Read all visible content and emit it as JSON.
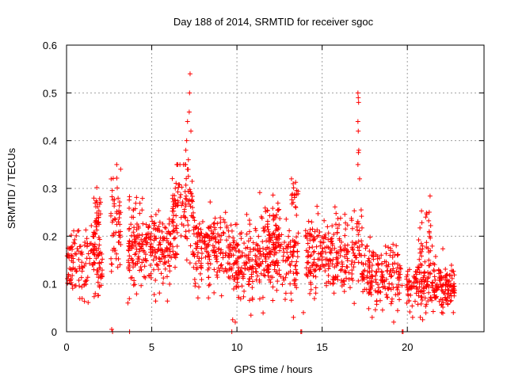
{
  "chart_data": {
    "type": "scatter",
    "title": "Day 188 of 2014, SRMTID for receiver sgoc",
    "xlabel": "GPS time / hours",
    "ylabel": "SRMTID / TECUs",
    "xlim": [
      0,
      24.5
    ],
    "ylim": [
      0,
      0.6
    ],
    "x_ticks": [
      0,
      5,
      10,
      15,
      20
    ],
    "x_tick_labels": [
      "0",
      "5",
      "10",
      "15",
      "20"
    ],
    "y_ticks": [
      0,
      0.1,
      0.2,
      0.3,
      0.4,
      0.5,
      0.6
    ],
    "y_tick_labels": [
      "0",
      "0.1",
      "0.2",
      "0.3",
      "0.4",
      "0.5",
      "0.6"
    ],
    "grid": true,
    "marker": "+",
    "series": [
      {
        "name": "SRMTID",
        "color": "#ff0000",
        "clusters": [
          {
            "x": [
              0.0,
              2.0
            ],
            "center": 0.15,
            "spread": 0.035,
            "n": 140
          },
          {
            "x": [
              1.6,
              2.0
            ],
            "center": 0.24,
            "spread": 0.03,
            "n": 35
          },
          {
            "x": [
              1.9,
              2.1
            ],
            "center": 0.12,
            "spread": 0.02,
            "n": 12
          },
          {
            "x": [
              2.6,
              3.2
            ],
            "center": 0.23,
            "spread": 0.06,
            "n": 55
          },
          {
            "x": [
              3.6,
              6.5
            ],
            "center": 0.18,
            "spread": 0.04,
            "n": 260
          },
          {
            "x": [
              6.2,
              7.4
            ],
            "center": 0.26,
            "spread": 0.06,
            "n": 90
          },
          {
            "x": [
              7.4,
              9.8
            ],
            "center": 0.17,
            "spread": 0.04,
            "n": 200
          },
          {
            "x": [
              9.8,
              12.4
            ],
            "center": 0.15,
            "spread": 0.04,
            "n": 220
          },
          {
            "x": [
              11.6,
              12.5
            ],
            "center": 0.21,
            "spread": 0.04,
            "n": 50
          },
          {
            "x": [
              12.4,
              13.6
            ],
            "center": 0.16,
            "spread": 0.04,
            "n": 90
          },
          {
            "x": [
              13.2,
              13.6
            ],
            "center": 0.29,
            "spread": 0.015,
            "n": 14
          },
          {
            "x": [
              14.0,
              17.0
            ],
            "center": 0.16,
            "spread": 0.04,
            "n": 240
          },
          {
            "x": [
              17.0,
              17.4
            ],
            "center": 0.18,
            "spread": 0.04,
            "n": 25
          },
          {
            "x": [
              17.3,
              19.7
            ],
            "center": 0.12,
            "spread": 0.035,
            "n": 180
          },
          {
            "x": [
              19.9,
              21.6
            ],
            "center": 0.1,
            "spread": 0.03,
            "n": 130
          },
          {
            "x": [
              20.6,
              21.4
            ],
            "center": 0.19,
            "spread": 0.04,
            "n": 30
          },
          {
            "x": [
              21.6,
              22.8
            ],
            "center": 0.09,
            "spread": 0.025,
            "n": 110
          }
        ],
        "points": [
          {
            "x": 7.0,
            "y": 0.38
          },
          {
            "x": 7.05,
            "y": 0.4
          },
          {
            "x": 7.1,
            "y": 0.34
          },
          {
            "x": 7.2,
            "y": 0.46
          },
          {
            "x": 7.22,
            "y": 0.5
          },
          {
            "x": 7.25,
            "y": 0.54
          },
          {
            "x": 7.1,
            "y": 0.44
          },
          {
            "x": 7.3,
            "y": 0.42
          },
          {
            "x": 7.15,
            "y": 0.36
          },
          {
            "x": 17.1,
            "y": 0.5
          },
          {
            "x": 17.12,
            "y": 0.49
          },
          {
            "x": 17.14,
            "y": 0.48
          },
          {
            "x": 17.1,
            "y": 0.44
          },
          {
            "x": 17.12,
            "y": 0.42
          },
          {
            "x": 17.15,
            "y": 0.38
          },
          {
            "x": 17.1,
            "y": 0.35
          },
          {
            "x": 17.2,
            "y": 0.32
          },
          {
            "x": 17.13,
            "y": 0.375
          },
          {
            "x": 13.2,
            "y": 0.32
          },
          {
            "x": 13.3,
            "y": 0.31
          },
          {
            "x": 2.65,
            "y": 0.005
          },
          {
            "x": 2.7,
            "y": 0.0
          },
          {
            "x": 3.7,
            "y": 0.0
          },
          {
            "x": 9.7,
            "y": 0.0
          },
          {
            "x": 9.75,
            "y": 0.025
          },
          {
            "x": 13.75,
            "y": 0.0
          },
          {
            "x": 13.8,
            "y": 0.0
          },
          {
            "x": 19.7,
            "y": 0.0
          },
          {
            "x": 19.75,
            "y": 0.0
          },
          {
            "x": 3.6,
            "y": 0.06
          },
          {
            "x": 9.9,
            "y": 0.02
          },
          {
            "x": 13.9,
            "y": 0.04
          },
          {
            "x": 19.2,
            "y": 0.02
          },
          {
            "x": 20.9,
            "y": 0.025
          },
          {
            "x": 22.7,
            "y": 0.04
          }
        ]
      }
    ]
  }
}
